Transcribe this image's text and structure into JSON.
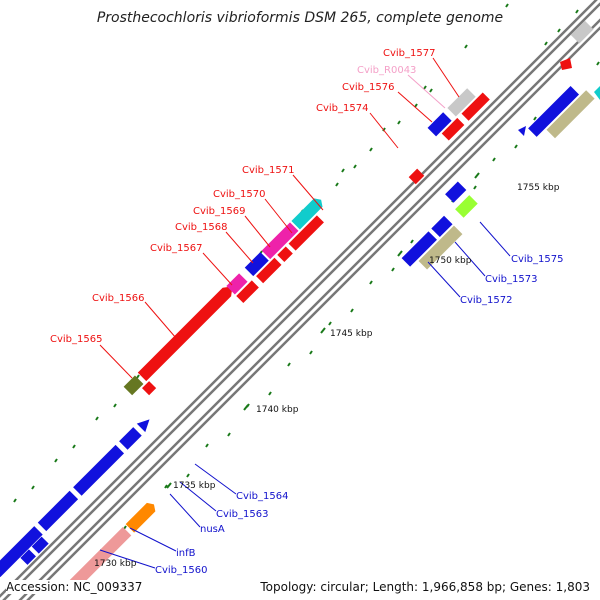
{
  "title": "Prosthecochloris vibrioformis DSM 265, complete genome",
  "footer": {
    "accession": "Accession: NC_009337",
    "summary": "Topology: circular; Length: 1,966,858 bp; Genes: 1,803"
  },
  "ticks": [
    "1730 kbp",
    "1735 kbp",
    "1740 kbp",
    "1745 kbp",
    "1750 kbp",
    "1755 kbp"
  ],
  "labels": [
    {
      "id": "cvib_1565",
      "text": "Cvib_1565",
      "color": "#ee1111"
    },
    {
      "id": "cvib_1566",
      "text": "Cvib_1566",
      "color": "#ee1111"
    },
    {
      "id": "cvib_1567",
      "text": "Cvib_1567",
      "color": "#ee1111"
    },
    {
      "id": "cvib_1568",
      "text": "Cvib_1568",
      "color": "#ee1111"
    },
    {
      "id": "cvib_1569",
      "text": "Cvib_1569",
      "color": "#ee1111"
    },
    {
      "id": "cvib_1570",
      "text": "Cvib_1570",
      "color": "#ee1111"
    },
    {
      "id": "cvib_1571",
      "text": "Cvib_1571",
      "color": "#ee1111"
    },
    {
      "id": "cvib_1574",
      "text": "Cvib_1574",
      "color": "#ee1111"
    },
    {
      "id": "cvib_1576",
      "text": "Cvib_1576",
      "color": "#ee1111"
    },
    {
      "id": "cvib_r0043",
      "text": "Cvib_R0043",
      "color": "#f4a0c8"
    },
    {
      "id": "cvib_1577",
      "text": "Cvib_1577",
      "color": "#ee1111"
    },
    {
      "id": "cvib_1575",
      "text": "Cvib_1575",
      "color": "#1111cc"
    },
    {
      "id": "cvib_1573",
      "text": "Cvib_1573",
      "color": "#1111cc"
    },
    {
      "id": "cvib_1572",
      "text": "Cvib_1572",
      "color": "#1111cc"
    },
    {
      "id": "cvib_1564",
      "text": "Cvib_1564",
      "color": "#1111cc"
    },
    {
      "id": "cvib_1563",
      "text": "Cvib_1563",
      "color": "#1111cc"
    },
    {
      "id": "nusa",
      "text": "nusA",
      "color": "#1111cc"
    },
    {
      "id": "infb",
      "text": "infB",
      "color": "#1111cc"
    },
    {
      "id": "cvib_1560",
      "text": "Cvib_1560",
      "color": "#1111cc"
    }
  ],
  "colors": {
    "red_gene": "#ee1111",
    "blue_gene": "#1111dd",
    "magenta_gene": "#ee22aa",
    "cyan_gene": "#11cccc",
    "khaki_gene": "#bfb98a",
    "lime_gene": "#99ff33",
    "olive_gene": "#667722",
    "orange_gene": "#ff8800",
    "salmon_gene": "#ee9999",
    "grey_gene": "#c8c8c8",
    "backbone": "#888888",
    "tick": "#1a7a1a"
  }
}
